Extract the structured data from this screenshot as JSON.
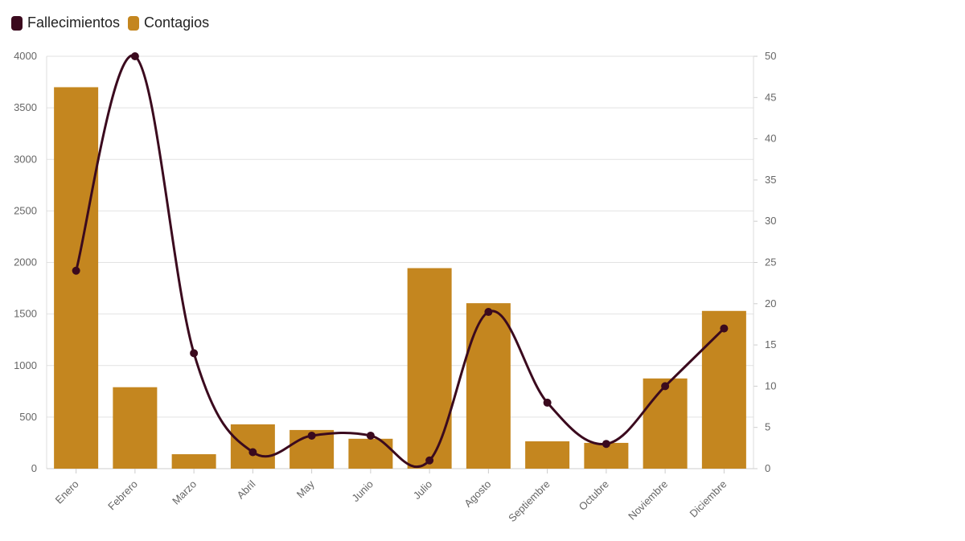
{
  "chart_data": {
    "type": "bar",
    "categories": [
      "Enero",
      "Febrero",
      "Marzo",
      "Abril",
      "May",
      "Junio",
      "Julio",
      "Agosto",
      "Septiembre",
      "Octubre",
      "Noviembre",
      "Diciembre"
    ],
    "series": [
      {
        "name": "Contagios",
        "type": "bar",
        "axis": "left",
        "color": "#C4861F",
        "values": [
          3700,
          790,
          140,
          430,
          375,
          290,
          1945,
          1605,
          265,
          250,
          875,
          1530
        ]
      },
      {
        "name": "Fallecimientos",
        "type": "line",
        "axis": "right",
        "color": "#3B0A1E",
        "values": [
          24,
          50,
          14,
          2,
          4,
          4,
          1,
          19,
          8,
          3,
          10,
          17
        ]
      }
    ],
    "y_left": {
      "ticks": [
        0,
        500,
        1000,
        1500,
        2000,
        2500,
        3000,
        3500,
        4000
      ],
      "ylim": [
        0,
        4000
      ]
    },
    "y_right": {
      "ticks": [
        0,
        5,
        10,
        15,
        20,
        25,
        30,
        35,
        40,
        45,
        50
      ],
      "ylim": [
        0,
        50
      ]
    },
    "title": "",
    "xlabel": "",
    "ylabel": "",
    "grid": true,
    "legend_position": "top-left"
  },
  "legend": [
    {
      "label": "Fallecimientos",
      "color": "#3B0A1E"
    },
    {
      "label": "Contagios",
      "color": "#C4861F"
    }
  ]
}
